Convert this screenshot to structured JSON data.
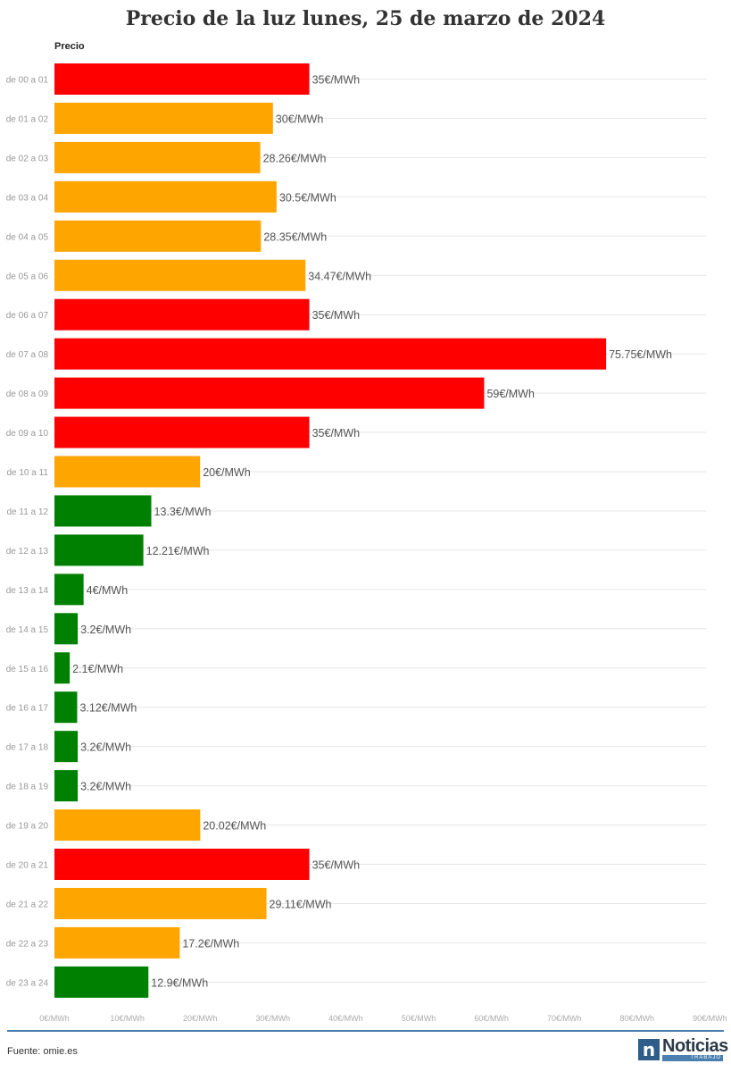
{
  "title": "Precio de la luz lunes, 25 de marzo de 2024",
  "series_label": "Precio",
  "source": "Fuente: omie.es",
  "logo": {
    "word": "Noticias",
    "sub": "TRABAJO",
    "mark": "n"
  },
  "colors": {
    "high": "#ff0000",
    "mid": "#ffa500",
    "low": "#008000",
    "grid": "#e6e6e6",
    "accent": "#4a7fb0"
  },
  "chart_data": {
    "type": "bar",
    "orientation": "horizontal",
    "title": "Precio de la luz lunes, 25 de marzo de 2024",
    "series_name": "Precio",
    "unit_suffix": "€/MWh",
    "xlim": [
      0,
      90
    ],
    "x_ticks": [
      "0€/MWh",
      "10€/MWh",
      "20€/MWh",
      "30€/MWh",
      "40€/MWh",
      "50€/MWh",
      "60€/MWh",
      "70€/MWh",
      "80€/MWh",
      "90€/MWh"
    ],
    "grid": true,
    "categories": [
      "de 00 a 01",
      "de 01 a 02",
      "de 02 a 03",
      "de 03 a 04",
      "de 04 a 05",
      "de 05 a 06",
      "de 06 a 07",
      "de 07 a 08",
      "de 08 a 09",
      "de 09 a 10",
      "de 10 a 11",
      "de 11 a 12",
      "de 12 a 13",
      "de 13 a 14",
      "de 14 a 15",
      "de 15 a 16",
      "de 16 a 17",
      "de 17 a 18",
      "de 18 a 19",
      "de 19 a 20",
      "de 20 a 21",
      "de 21 a 22",
      "de 22 a 23",
      "de 23 a 24"
    ],
    "values": [
      35,
      30,
      28.26,
      30.5,
      28.35,
      34.47,
      35,
      75.75,
      59,
      35,
      20,
      13.3,
      12.21,
      4,
      3.2,
      2.1,
      3.12,
      3.2,
      3.2,
      20.02,
      35,
      29.11,
      17.2,
      12.9
    ],
    "value_labels": [
      "35€/MWh",
      "30€/MWh",
      "28.26€/MWh",
      "30.5€/MWh",
      "28.35€/MWh",
      "34.47€/MWh",
      "35€/MWh",
      "75.75€/MWh",
      "59€/MWh",
      "35€/MWh",
      "20€/MWh",
      "13.3€/MWh",
      "12.21€/MWh",
      "4€/MWh",
      "3.2€/MWh",
      "2.1€/MWh",
      "3.12€/MWh",
      "3.2€/MWh",
      "3.2€/MWh",
      "20.02€/MWh",
      "35€/MWh",
      "29.11€/MWh",
      "17.2€/MWh",
      "12.9€/MWh"
    ],
    "bar_colors": [
      "#ff0000",
      "#ffa500",
      "#ffa500",
      "#ffa500",
      "#ffa500",
      "#ffa500",
      "#ff0000",
      "#ff0000",
      "#ff0000",
      "#ff0000",
      "#ffa500",
      "#008000",
      "#008000",
      "#008000",
      "#008000",
      "#008000",
      "#008000",
      "#008000",
      "#008000",
      "#ffa500",
      "#ff0000",
      "#ffa500",
      "#ffa500",
      "#008000"
    ]
  }
}
